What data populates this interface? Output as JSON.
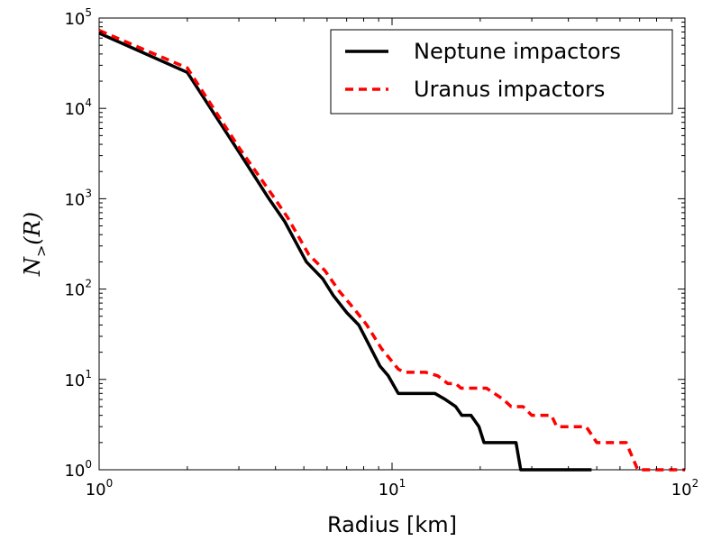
{
  "chart_data": {
    "type": "line",
    "xlabel": "Radius [km]",
    "ylabel": {
      "base": "N",
      "sub": ">",
      "arg": "(R)"
    },
    "xscale": "log",
    "yscale": "log",
    "xlim": [
      1,
      100
    ],
    "ylim": [
      1,
      100000
    ],
    "x_ticks": [
      {
        "base": "10",
        "exp": "0",
        "value": 1
      },
      {
        "base": "10",
        "exp": "1",
        "value": 10
      },
      {
        "base": "10",
        "exp": "2",
        "value": 100
      }
    ],
    "y_ticks": [
      {
        "base": "10",
        "exp": "0",
        "value": 1
      },
      {
        "base": "10",
        "exp": "1",
        "value": 10
      },
      {
        "base": "10",
        "exp": "2",
        "value": 100
      },
      {
        "base": "10",
        "exp": "3",
        "value": 1000
      },
      {
        "base": "10",
        "exp": "4",
        "value": 10000
      },
      {
        "base": "10",
        "exp": "5",
        "value": 100000
      }
    ],
    "grid": false,
    "legend_position": "top-right",
    "series": [
      {
        "name": "Neptune impactors",
        "color": "#000000",
        "style": "solid",
        "points": [
          [
            1.0,
            68000
          ],
          [
            2.0,
            25000
          ],
          [
            3.0,
            3300
          ],
          [
            3.8,
            1000
          ],
          [
            4.3,
            560
          ],
          [
            5.1,
            200
          ],
          [
            5.8,
            130
          ],
          [
            6.3,
            85
          ],
          [
            7.0,
            55
          ],
          [
            7.7,
            40
          ],
          [
            8.3,
            25
          ],
          [
            9.1,
            14
          ],
          [
            9.7,
            11
          ],
          [
            10.5,
            7
          ],
          [
            14.0,
            7
          ],
          [
            15.2,
            6
          ],
          [
            16.5,
            5
          ],
          [
            17.3,
            4
          ],
          [
            18.6,
            4
          ],
          [
            19.8,
            3
          ],
          [
            20.6,
            2
          ],
          [
            24.5,
            2
          ],
          [
            26.5,
            2
          ],
          [
            27.5,
            1
          ],
          [
            48.0,
            1
          ]
        ]
      },
      {
        "name": "Uranus impactors",
        "color": "#ff0000",
        "style": "dashed",
        "points": [
          [
            1.0,
            73000
          ],
          [
            2.0,
            28000
          ],
          [
            3.0,
            3700
          ],
          [
            3.9,
            1100
          ],
          [
            4.4,
            620
          ],
          [
            5.2,
            240
          ],
          [
            5.9,
            160
          ],
          [
            6.6,
            95
          ],
          [
            7.5,
            58
          ],
          [
            8.2,
            40
          ],
          [
            9.2,
            22
          ],
          [
            10.5,
            13
          ],
          [
            11.0,
            12
          ],
          [
            13.0,
            12
          ],
          [
            14.3,
            11
          ],
          [
            15.5,
            9
          ],
          [
            16.5,
            9
          ],
          [
            17.2,
            8
          ],
          [
            19.0,
            8
          ],
          [
            21.0,
            8
          ],
          [
            24.0,
            6
          ],
          [
            25.5,
            5
          ],
          [
            28.0,
            5
          ],
          [
            30.0,
            4
          ],
          [
            32.0,
            4
          ],
          [
            35.0,
            4
          ],
          [
            36.5,
            3
          ],
          [
            44.0,
            3
          ],
          [
            46.0,
            3
          ],
          [
            50.0,
            2
          ],
          [
            56.0,
            2
          ],
          [
            63.0,
            2
          ],
          [
            69.0,
            1
          ],
          [
            100.0,
            1
          ]
        ]
      }
    ]
  }
}
